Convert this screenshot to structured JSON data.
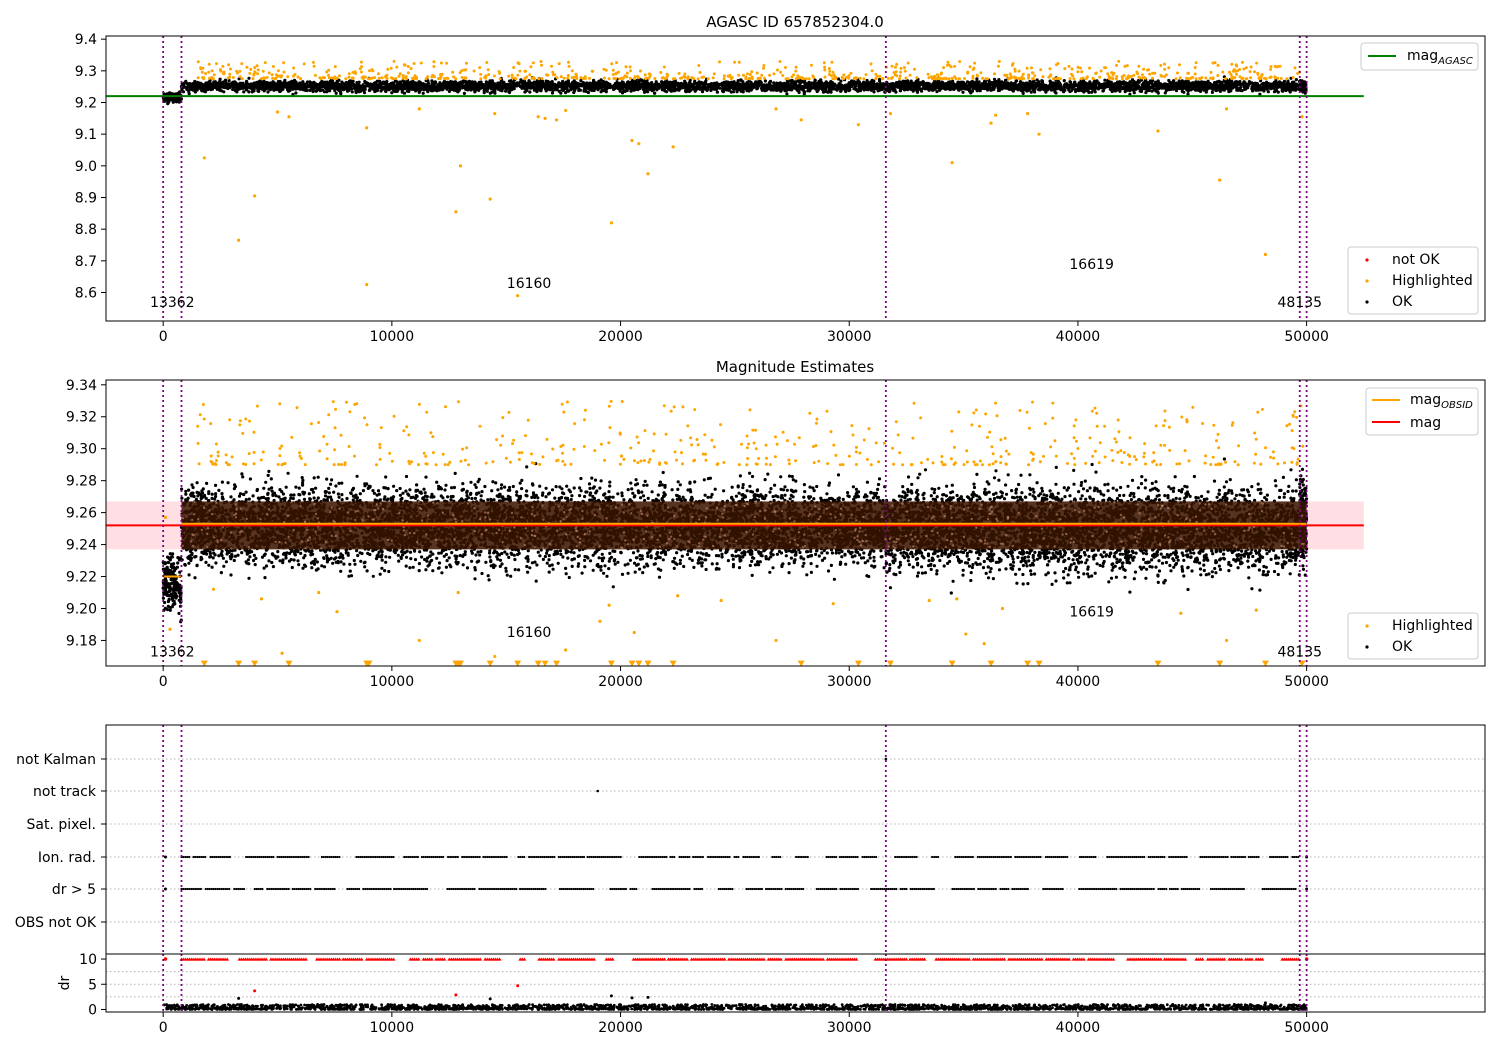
{
  "chart_data": [
    {
      "type": "scatter",
      "title": "AGASC ID 657852304.0",
      "xlim": [
        -2500,
        57800
      ],
      "ylim": [
        8.51,
        9.41
      ],
      "x_ticks": [
        0,
        10000,
        20000,
        30000,
        40000,
        50000
      ],
      "y_ticks": [
        8.6,
        8.7,
        8.8,
        8.9,
        9.0,
        9.1,
        9.2,
        9.3,
        9.4
      ],
      "y_tick_labels": [
        "8.6",
        "8.7",
        "8.8",
        "8.9",
        "9.0",
        "9.1",
        "9.2",
        "9.3",
        "9.4"
      ],
      "series": [
        {
          "name": "not OK",
          "color": "#ff0000"
        },
        {
          "name": "Highlighted",
          "color": "#ffa500"
        },
        {
          "name": "OK",
          "color": "#000000"
        }
      ],
      "reference_lines": [
        {
          "name": "mag",
          "subscript": "AGASC",
          "y": 9.22,
          "x_range": [
            0,
            52500
          ],
          "color": "#008000"
        }
      ],
      "obsid_boundaries": [
        0,
        800,
        31600,
        49700,
        50000
      ],
      "obsid_labels": [
        {
          "text": "13362",
          "x": 400,
          "y": 8.555
        },
        {
          "text": "16160",
          "x": 16000,
          "y": 8.615
        },
        {
          "text": "16619",
          "x": 40600,
          "y": 8.675
        },
        {
          "text": "48135",
          "x": 49700,
          "y": 8.555
        }
      ],
      "segments": [
        {
          "x_start": 0,
          "x_end": 800,
          "center": 9.215,
          "spread": 0.01,
          "count": 150
        },
        {
          "x_start": 800,
          "x_end": 31600,
          "center": 9.252,
          "spread": 0.012,
          "count": 3000
        },
        {
          "x_start": 31600,
          "x_end": 49700,
          "center": 9.252,
          "spread": 0.012,
          "count": 1800
        },
        {
          "x_start": 49700,
          "x_end": 50000,
          "center": 9.252,
          "spread": 0.012,
          "count": 60
        }
      ],
      "highlighted_upper": {
        "x_start": 1500,
        "x_end": 50000,
        "y_min": 9.275,
        "y_max": 9.33,
        "count": 700
      },
      "highlighted_outliers": [
        {
          "x": 1800,
          "y": 9.025
        },
        {
          "x": 3300,
          "y": 8.765
        },
        {
          "x": 4000,
          "y": 8.905
        },
        {
          "x": 5000,
          "y": 9.17
        },
        {
          "x": 5500,
          "y": 9.155
        },
        {
          "x": 8900,
          "y": 8.625
        },
        {
          "x": 8900,
          "y": 9.12
        },
        {
          "x": 11200,
          "y": 9.18
        },
        {
          "x": 12800,
          "y": 8.855
        },
        {
          "x": 13000,
          "y": 9.0
        },
        {
          "x": 14300,
          "y": 8.895
        },
        {
          "x": 14500,
          "y": 9.165
        },
        {
          "x": 15500,
          "y": 8.59
        },
        {
          "x": 16400,
          "y": 9.155
        },
        {
          "x": 16700,
          "y": 9.15
        },
        {
          "x": 17200,
          "y": 9.145
        },
        {
          "x": 17600,
          "y": 9.175
        },
        {
          "x": 19600,
          "y": 8.82
        },
        {
          "x": 20500,
          "y": 9.08
        },
        {
          "x": 20800,
          "y": 9.07
        },
        {
          "x": 21200,
          "y": 8.975
        },
        {
          "x": 22300,
          "y": 9.06
        },
        {
          "x": 26800,
          "y": 9.18
        },
        {
          "x": 27900,
          "y": 9.145
        },
        {
          "x": 30400,
          "y": 9.13
        },
        {
          "x": 31800,
          "y": 9.165
        },
        {
          "x": 34500,
          "y": 9.01
        },
        {
          "x": 36200,
          "y": 9.135
        },
        {
          "x": 36400,
          "y": 9.16
        },
        {
          "x": 37800,
          "y": 9.165
        },
        {
          "x": 38300,
          "y": 9.1
        },
        {
          "x": 43500,
          "y": 9.11
        },
        {
          "x": 46200,
          "y": 8.955
        },
        {
          "x": 46500,
          "y": 9.18
        },
        {
          "x": 48200,
          "y": 8.72
        },
        {
          "x": 49800,
          "y": 9.155
        }
      ],
      "legend_placement": "lower-right",
      "reference_legend_placement": "upper-right",
      "grid": false
    },
    {
      "type": "scatter",
      "title": "Magnitude Estimates",
      "xlim": [
        -2500,
        57800
      ],
      "ylim": [
        9.164,
        9.343
      ],
      "x_ticks": [
        0,
        10000,
        20000,
        30000,
        40000,
        50000
      ],
      "y_ticks": [
        9.18,
        9.2,
        9.22,
        9.24,
        9.26,
        9.28,
        9.3,
        9.32,
        9.34
      ],
      "y_tick_labels": [
        "9.18",
        "9.20",
        "9.22",
        "9.24",
        "9.26",
        "9.28",
        "9.30",
        "9.32",
        "9.34"
      ],
      "series": [
        {
          "name": "Highlighted",
          "color": "#ffa500"
        },
        {
          "name": "OK",
          "color": "#000000"
        }
      ],
      "reference_lines": [
        {
          "name": "mag",
          "subscript": "OBSID",
          "color": "#ffa500",
          "steps": [
            {
              "x_start": 0,
              "x_end": 800,
              "y": 9.22
            },
            {
              "x_start": 800,
              "x_end": 31600,
              "y": 9.253
            },
            {
              "x_start": 31600,
              "x_end": 49700,
              "y": 9.253
            },
            {
              "x_start": 49700,
              "x_end": 50000,
              "y": 9.253
            }
          ]
        },
        {
          "name": "mag",
          "subscript": "",
          "color": "#ff0000",
          "y": 9.252,
          "band": [
            9.237,
            9.267
          ],
          "x_range": [
            -2500,
            52500
          ]
        }
      ],
      "obsid_boundaries": [
        0,
        800,
        31600,
        49700,
        50000
      ],
      "obsid_labels": [
        {
          "text": "13362",
          "x": 400,
          "y": 9.17
        },
        {
          "text": "16160",
          "x": 16000,
          "y": 9.182
        },
        {
          "text": "16619",
          "x": 40600,
          "y": 9.195
        },
        {
          "text": "48135",
          "x": 49700,
          "y": 9.17
        }
      ],
      "segments": [
        {
          "x_start": 0,
          "x_end": 800,
          "center": 9.215,
          "spread": 0.012,
          "count": 200
        },
        {
          "x_start": 800,
          "x_end": 31600,
          "center": 9.252,
          "spread": 0.017,
          "count": 6500
        },
        {
          "x_start": 31600,
          "x_end": 49700,
          "center": 9.25,
          "spread": 0.018,
          "count": 4000
        },
        {
          "x_start": 49700,
          "x_end": 50000,
          "center": 9.255,
          "spread": 0.018,
          "count": 150
        }
      ],
      "core_band": {
        "y_min": 9.237,
        "y_max": 9.267,
        "color": "#3a1500"
      },
      "highlighted_upper": {
        "x_start": 1500,
        "x_end": 50000,
        "y_min": 9.29,
        "y_max": 9.33,
        "count": 450
      },
      "highlighted_outliers": [
        {
          "x": 2200,
          "y": 9.212
        },
        {
          "x": 4300,
          "y": 9.206
        },
        {
          "x": 5200,
          "y": 9.172
        },
        {
          "x": 6800,
          "y": 9.21
        },
        {
          "x": 7600,
          "y": 9.198
        },
        {
          "x": 11200,
          "y": 9.18
        },
        {
          "x": 12900,
          "y": 9.21
        },
        {
          "x": 14500,
          "y": 9.17
        },
        {
          "x": 17600,
          "y": 9.174
        },
        {
          "x": 19100,
          "y": 9.192
        },
        {
          "x": 19500,
          "y": 9.202
        },
        {
          "x": 20600,
          "y": 9.185
        },
        {
          "x": 22500,
          "y": 9.208
        },
        {
          "x": 24400,
          "y": 9.205
        },
        {
          "x": 26800,
          "y": 9.18
        },
        {
          "x": 29300,
          "y": 9.203
        },
        {
          "x": 33500,
          "y": 9.205
        },
        {
          "x": 34700,
          "y": 9.206
        },
        {
          "x": 35100,
          "y": 9.184
        },
        {
          "x": 35900,
          "y": 9.178
        },
        {
          "x": 36700,
          "y": 9.2
        },
        {
          "x": 44500,
          "y": 9.197
        },
        {
          "x": 46500,
          "y": 9.18
        },
        {
          "x": 47800,
          "y": 9.199
        },
        {
          "x": 100,
          "y": 9.257
        },
        {
          "x": 300,
          "y": 9.187
        }
      ],
      "low_markers": {
        "y": 9.1655,
        "xs": [
          1800,
          3300,
          4000,
          5500,
          8900,
          9000,
          12800,
          12900,
          13000,
          14300,
          15500,
          16400,
          16700,
          17200,
          19600,
          20500,
          20800,
          21200,
          22300,
          27900,
          30400,
          31800,
          34500,
          36200,
          37800,
          38300,
          43500,
          46200,
          48200,
          49800
        ]
      },
      "legend_placement": "lower-right",
      "reference_legend_placement": "upper-right",
      "grid": false
    },
    {
      "type": "scatter",
      "title": "",
      "xlim": [
        -2500,
        57800
      ],
      "x_ticks": [
        0,
        10000,
        20000,
        30000,
        40000,
        50000
      ],
      "categories": [
        "not Kalman",
        "not track",
        "Sat. pixel.",
        "Ion. rad.",
        "dr > 5",
        "OBS not OK"
      ],
      "flag_points": {
        "not Kalman": [
          31600
        ],
        "not track": [
          19000
        ],
        "Sat. pixel.": [],
        "Ion. rad.": {
          "x_start": 800,
          "x_end": 49700,
          "density": 0.55,
          "extra": [
            100,
            50000
          ]
        },
        "dr > 5": {
          "x_start": 800,
          "x_end": 49700,
          "density": 0.55,
          "extra": [
            100,
            50000
          ]
        },
        "OBS not OK": []
      },
      "grid": true
    },
    {
      "type": "scatter",
      "title": "",
      "ylabel": "dr",
      "xlim": [
        -2500,
        57800
      ],
      "ylim": [
        -0.5,
        11
      ],
      "x_ticks": [
        0,
        10000,
        20000,
        30000,
        40000,
        50000
      ],
      "y_ticks": [
        0,
        5,
        10
      ],
      "y_tick_labels": [
        "0",
        "5",
        "10"
      ],
      "dr_low": {
        "x_start": 0,
        "x_end": 50000,
        "y_min": 0,
        "y_max": 1.0,
        "count": 2500,
        "color": "#000000"
      },
      "dr_clipped": {
        "y": 10,
        "x_start": 800,
        "x_end": 49700,
        "density": 0.6,
        "color": "#ff0000"
      },
      "dr_outliers": [
        {
          "x": 3300,
          "y": 2.2,
          "color": "#000000"
        },
        {
          "x": 4000,
          "y": 3.7,
          "color": "#ff0000"
        },
        {
          "x": 12800,
          "y": 2.9,
          "color": "#ff0000"
        },
        {
          "x": 14300,
          "y": 2.1,
          "color": "#000000"
        },
        {
          "x": 15500,
          "y": 4.7,
          "color": "#ff0000"
        },
        {
          "x": 19600,
          "y": 2.7,
          "color": "#000000"
        },
        {
          "x": 20500,
          "y": 2.3,
          "color": "#000000"
        },
        {
          "x": 21200,
          "y": 2.4,
          "color": "#000000"
        },
        {
          "x": 48200,
          "y": 1.3,
          "color": "#000000"
        }
      ],
      "grid": true
    }
  ]
}
